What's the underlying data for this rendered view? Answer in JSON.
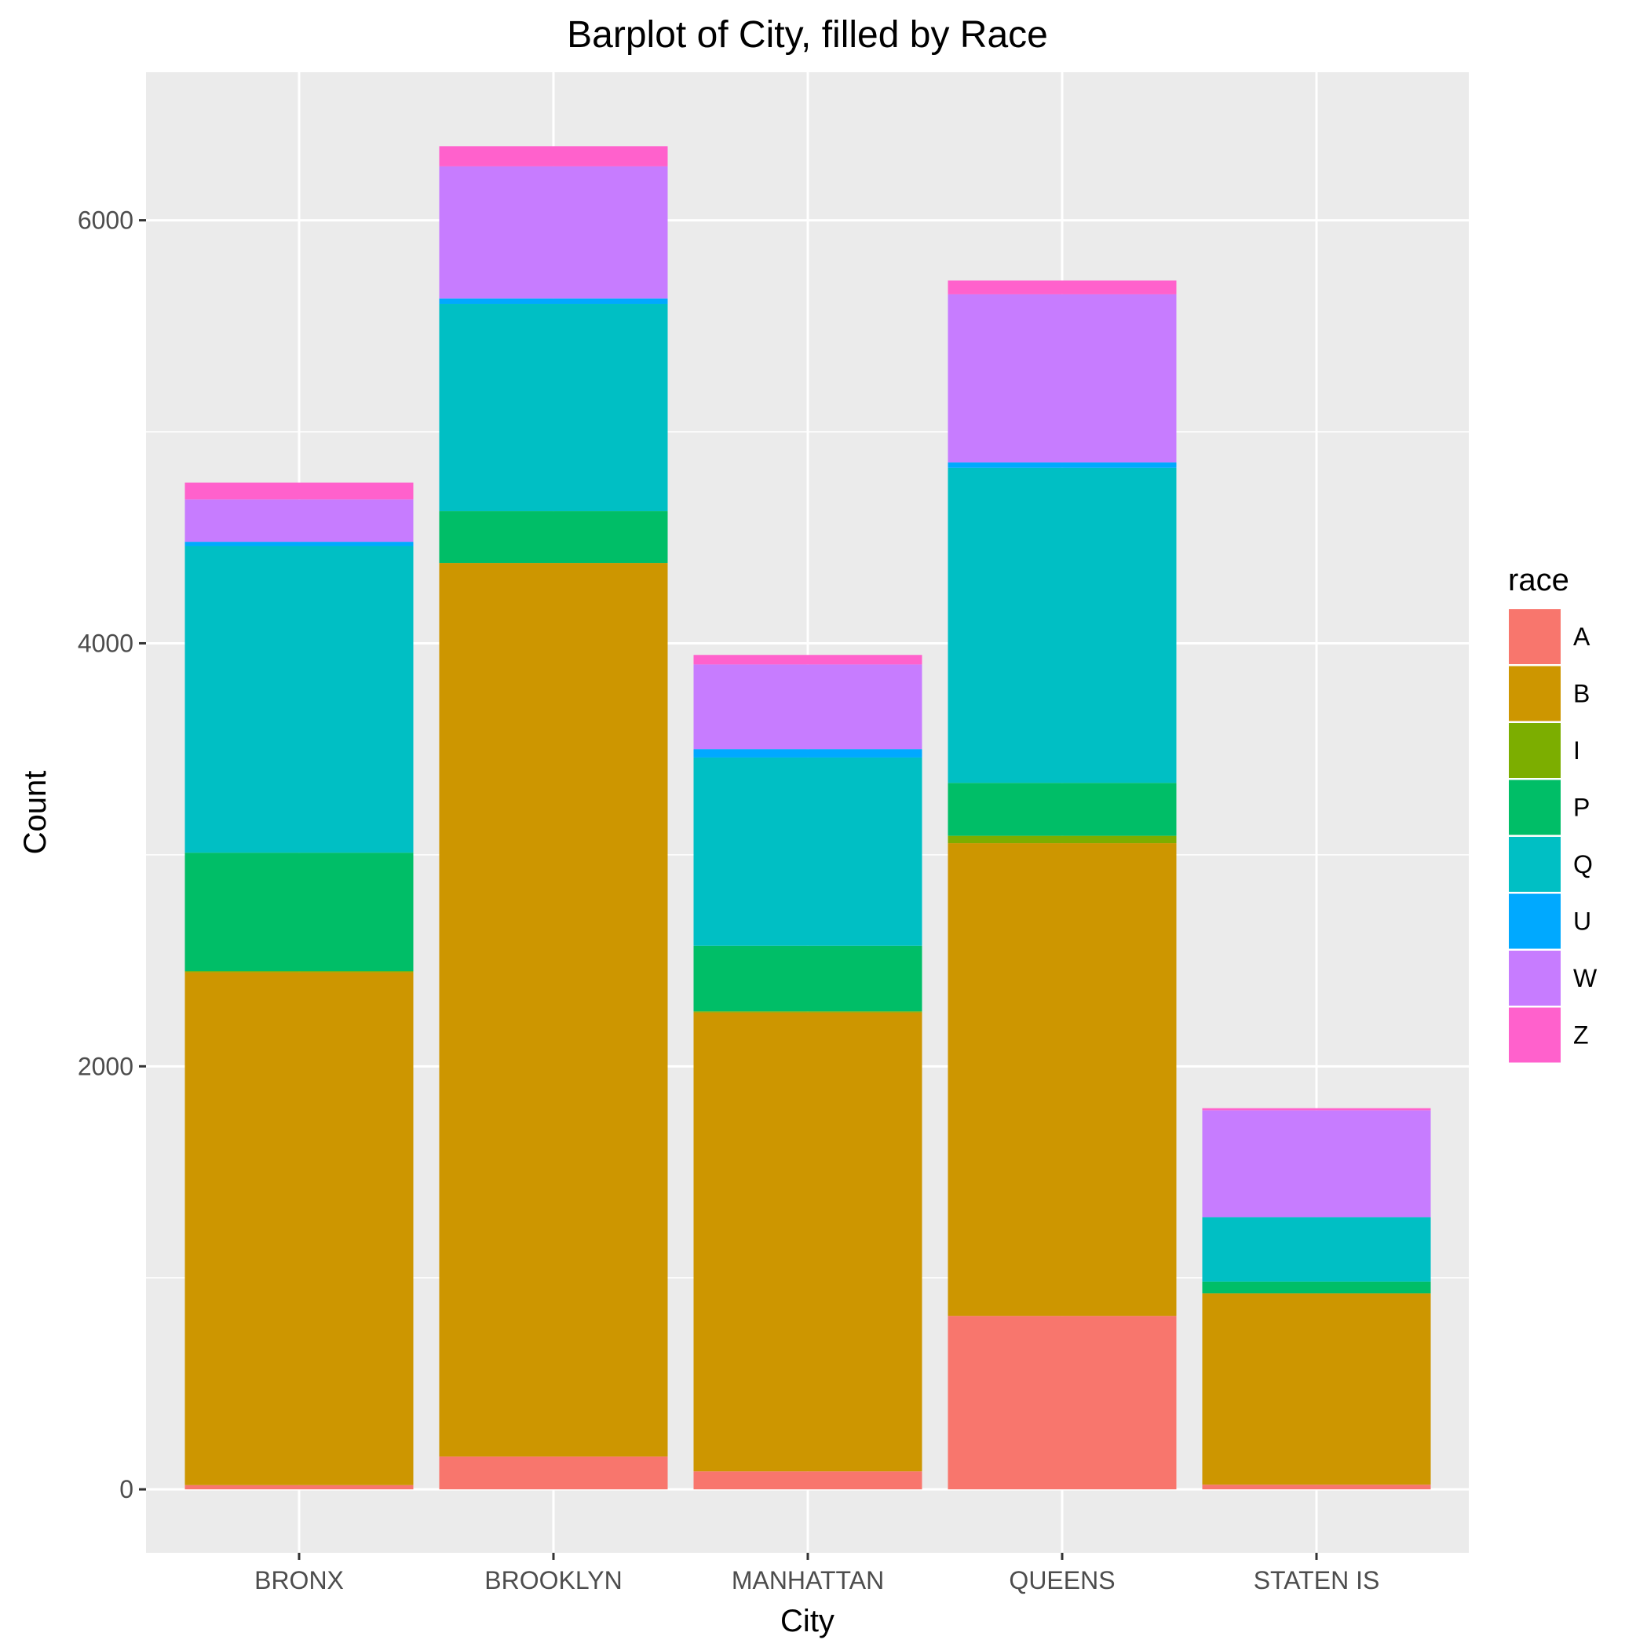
{
  "chart_data": {
    "type": "bar",
    "stacked": true,
    "title": "Barplot of City, filled by Race",
    "xlabel": "City",
    "ylabel": "Count",
    "categories": [
      "BRONX",
      "BROOKLYN",
      "MANHATTAN",
      "QUEENS",
      "STATEN IS"
    ],
    "ylim": [
      -300,
      6700
    ],
    "yticks": [
      0,
      2000,
      4000,
      6000
    ],
    "grid": true,
    "legend": {
      "title": "race",
      "position": "right"
    },
    "series": [
      {
        "name": "A",
        "color": "#F8766D",
        "values": [
          20,
          155,
          85,
          820,
          22
        ]
      },
      {
        "name": "B",
        "color": "#CD9600",
        "values": [
          2425,
          4225,
          2170,
          2235,
          905
        ]
      },
      {
        "name": "I",
        "color": "#7CAE00",
        "values": [
          5,
          0,
          5,
          35,
          0
        ]
      },
      {
        "name": "P",
        "color": "#00BE67",
        "values": [
          560,
          245,
          310,
          250,
          55
        ]
      },
      {
        "name": "Q",
        "color": "#00BFC4",
        "values": [
          1450,
          980,
          890,
          1490,
          305
        ]
      },
      {
        "name": "U",
        "color": "#00A9FF",
        "values": [
          20,
          25,
          40,
          25,
          0
        ]
      },
      {
        "name": "W",
        "color": "#C77CFF",
        "values": [
          200,
          625,
          400,
          795,
          505
        ]
      },
      {
        "name": "Z",
        "color": "#FF61CC",
        "values": [
          80,
          95,
          45,
          65,
          10
        ]
      }
    ]
  }
}
